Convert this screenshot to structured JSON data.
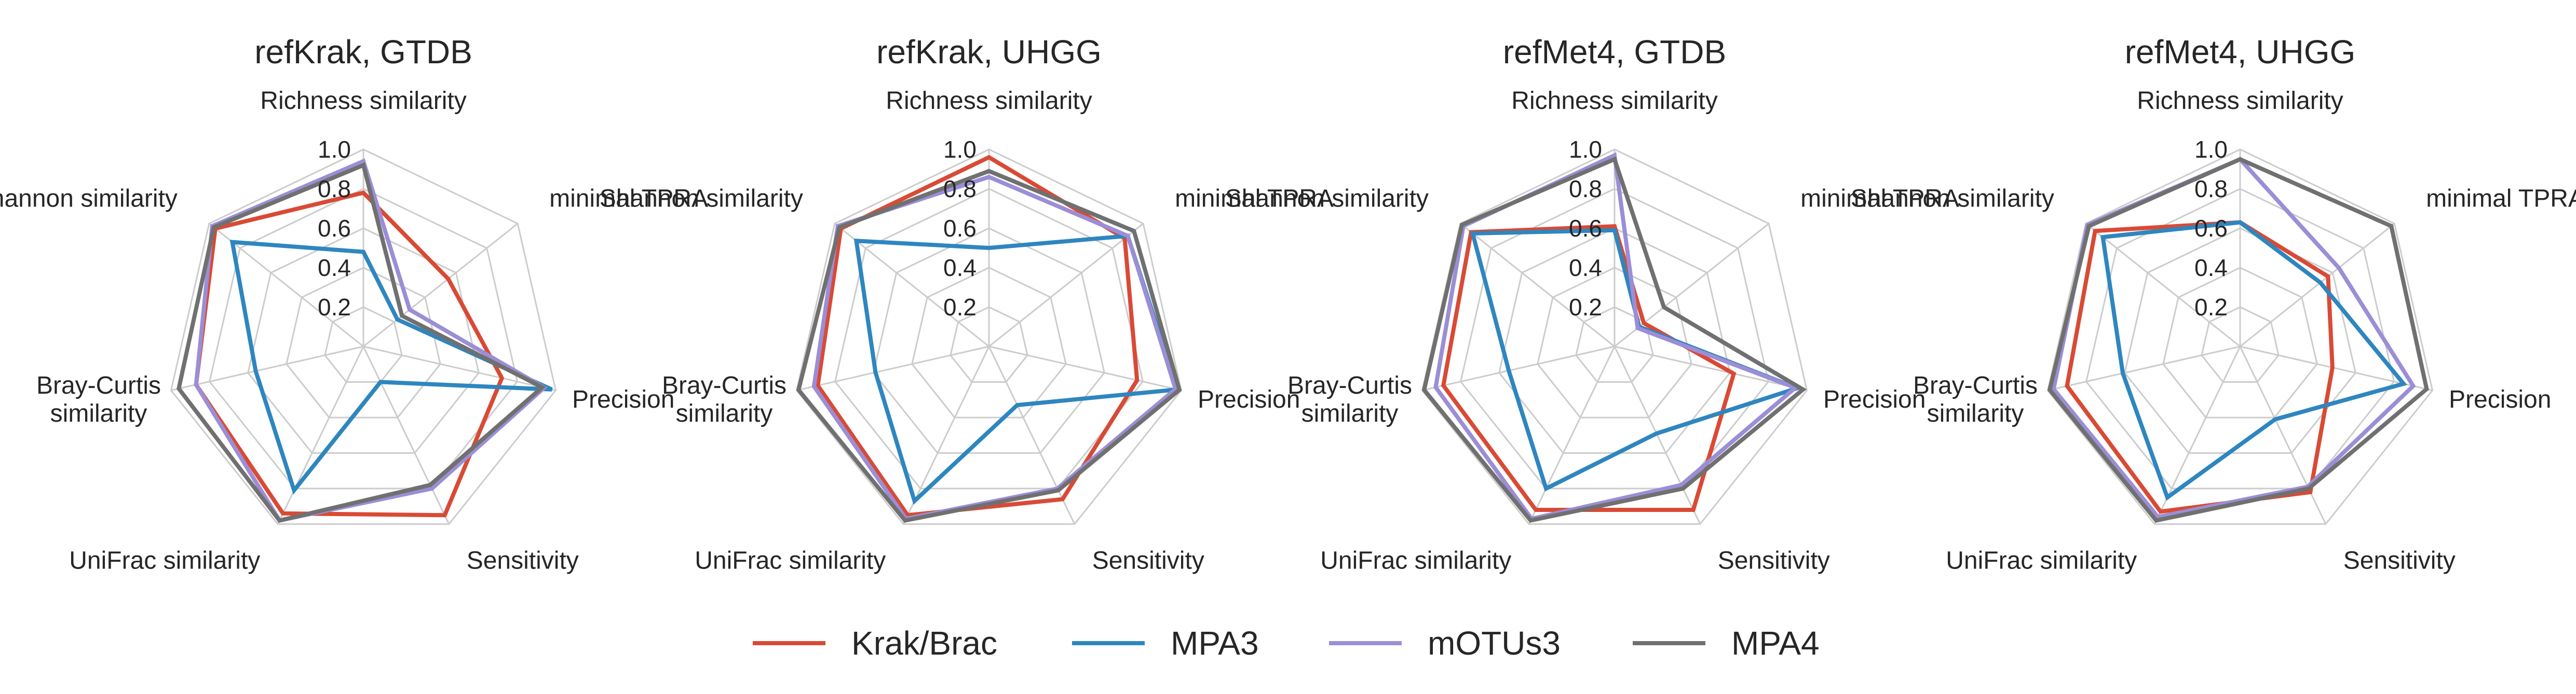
{
  "chart_data": {
    "type": "radar",
    "axes": [
      "Richness similarity",
      "minimal TPRA",
      "Precision",
      "Sensitivity",
      "UniFrac similarity",
      "Bray-Curtis similarity",
      "Shannon similarity"
    ],
    "axis_labels": [
      [
        "Richness similarity"
      ],
      [
        "minimal TPRA"
      ],
      [
        "Precision"
      ],
      [
        "Sensitivity"
      ],
      [
        "UniFrac similarity"
      ],
      [
        "Bray-Curtis",
        "similarity"
      ],
      [
        "Shannon similarity"
      ]
    ],
    "rlim": [
      0,
      1.0
    ],
    "rticks": [
      0.2,
      0.4,
      0.6,
      0.8,
      1.0
    ],
    "rtick_labels": [
      "0.2",
      "0.4",
      "0.6",
      "0.8",
      "1.0"
    ],
    "grid": true,
    "legend": {
      "position": "bottom-center",
      "entries": [
        "Krak/Brac",
        "MPA3",
        "mOTUs3",
        "MPA4"
      ]
    },
    "series_colors": {
      "Krak/Brac": "#d94a35",
      "MPA3": "#2e86bf",
      "mOTUs3": "#9b8ed6",
      "MPA4": "#707070"
    },
    "panels": [
      {
        "title": "refKrak, GTDB",
        "series": [
          {
            "name": "Krak/Brac",
            "values": [
              0.78,
              0.55,
              0.72,
              0.95,
              0.94,
              0.87,
              0.96
            ]
          },
          {
            "name": "MPA3",
            "values": [
              0.48,
              0.22,
              0.98,
              0.2,
              0.81,
              0.56,
              0.85
            ]
          },
          {
            "name": "mOTUs3",
            "values": [
              0.94,
              0.3,
              0.94,
              0.8,
              0.98,
              0.87,
              0.98
            ]
          },
          {
            "name": "MPA4",
            "values": [
              0.92,
              0.25,
              0.93,
              0.78,
              0.98,
              0.96,
              0.97
            ]
          }
        ]
      },
      {
        "title": "refKrak, UHGG",
        "series": [
          {
            "name": "Krak/Brac",
            "values": [
              0.96,
              0.88,
              0.77,
              0.86,
              0.95,
              0.89,
              0.96
            ]
          },
          {
            "name": "MPA3",
            "values": [
              0.5,
              0.9,
              0.98,
              0.33,
              0.87,
              0.59,
              0.86
            ]
          },
          {
            "name": "mOTUs3",
            "values": [
              0.86,
              0.9,
              0.97,
              0.8,
              0.97,
              0.91,
              0.98
            ]
          },
          {
            "name": "MPA4",
            "values": [
              0.89,
              0.94,
              0.99,
              0.81,
              0.98,
              0.99,
              0.97
            ]
          }
        ]
      },
      {
        "title": "refMet4, GTDB",
        "series": [
          {
            "name": "Krak/Brac",
            "values": [
              0.61,
              0.19,
              0.62,
              0.92,
              0.92,
              0.89,
              0.93
            ]
          },
          {
            "name": "MPA3",
            "values": [
              0.59,
              0.16,
              0.95,
              0.49,
              0.8,
              0.55,
              0.92
            ]
          },
          {
            "name": "mOTUs3",
            "values": [
              0.97,
              0.15,
              0.94,
              0.78,
              0.97,
              0.93,
              0.98
            ]
          },
          {
            "name": "MPA4",
            "values": [
              0.95,
              0.32,
              0.98,
              0.8,
              0.98,
              0.99,
              0.99
            ]
          }
        ]
      },
      {
        "title": "refMet4, UHGG",
        "series": [
          {
            "name": "Krak/Brac",
            "values": [
              0.63,
              0.57,
              0.48,
              0.82,
              0.93,
              0.9,
              0.94
            ]
          },
          {
            "name": "MPA3",
            "values": [
              0.63,
              0.52,
              0.85,
              0.41,
              0.85,
              0.61,
              0.89
            ]
          },
          {
            "name": "mOTUs3",
            "values": [
              0.95,
              0.64,
              0.9,
              0.79,
              0.96,
              0.97,
              0.99
            ]
          },
          {
            "name": "MPA4",
            "values": [
              0.95,
              0.98,
              0.97,
              0.8,
              0.98,
              0.99,
              0.98
            ]
          }
        ]
      }
    ]
  }
}
